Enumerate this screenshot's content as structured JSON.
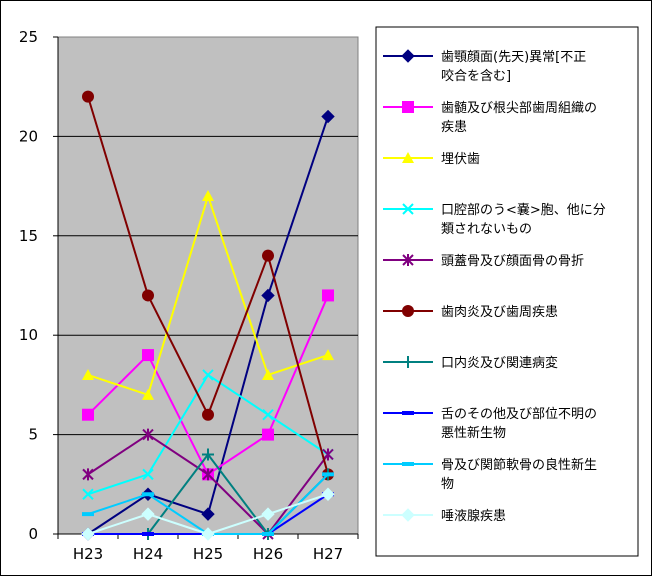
{
  "chart_data": {
    "type": "line",
    "title": "",
    "xlabel": "",
    "ylabel": "",
    "categories": [
      "H23",
      "H24",
      "H25",
      "H26",
      "H27"
    ],
    "ylim": [
      0,
      25
    ],
    "yticks": [
      "0",
      "5",
      "10",
      "15",
      "20",
      "25"
    ],
    "grid": true,
    "legend_position": "right",
    "plot_background": "#c0c0c0",
    "series": [
      {
        "name_lines": [
          "歯顎顔面(先天)異常[不正",
          "咬合を含む]"
        ],
        "color": "#000080",
        "marker": "diamond",
        "values": [
          0,
          2,
          1,
          12,
          21
        ]
      },
      {
        "name_lines": [
          "歯髄及び根尖部歯周組織の",
          "疾患"
        ],
        "color": "#ff00ff",
        "marker": "square",
        "values": [
          6,
          9,
          3,
          5,
          12
        ]
      },
      {
        "name_lines": [
          "埋伏歯"
        ],
        "color": "#ffff00",
        "marker": "triangle",
        "values": [
          8,
          7,
          17,
          8,
          9
        ]
      },
      {
        "name_lines": [
          "口腔部のう<嚢>胞、他に分",
          "類されないもの"
        ],
        "color": "#00ffff",
        "marker": "x",
        "values": [
          2,
          3,
          8,
          6,
          4
        ]
      },
      {
        "name_lines": [
          "頭蓋骨及び顔面骨の骨折"
        ],
        "color": "#800080",
        "marker": "star",
        "values": [
          3,
          5,
          3,
          0,
          4
        ]
      },
      {
        "name_lines": [
          "歯肉炎及び歯周疾患"
        ],
        "color": "#800000",
        "marker": "circle",
        "values": [
          22,
          12,
          6,
          14,
          3
        ]
      },
      {
        "name_lines": [
          "口内炎及び関連病変"
        ],
        "color": "#008080",
        "marker": "plus",
        "values": [
          0,
          0,
          4,
          0,
          3
        ]
      },
      {
        "name_lines": [
          "舌のその他及び部位不明の",
          "悪性新生物"
        ],
        "color": "#0000ff",
        "marker": "dash",
        "values": [
          0,
          0,
          0,
          0,
          2
        ]
      },
      {
        "name_lines": [
          "骨及び関節軟骨の良性新生",
          "物"
        ],
        "color": "#00ccff",
        "marker": "dash",
        "values": [
          1,
          2,
          0,
          0,
          3
        ]
      },
      {
        "name_lines": [
          "唾液腺疾患"
        ],
        "color": "#ccffff",
        "marker": "diamond",
        "values": [
          0,
          1,
          0,
          1,
          2
        ]
      }
    ]
  }
}
